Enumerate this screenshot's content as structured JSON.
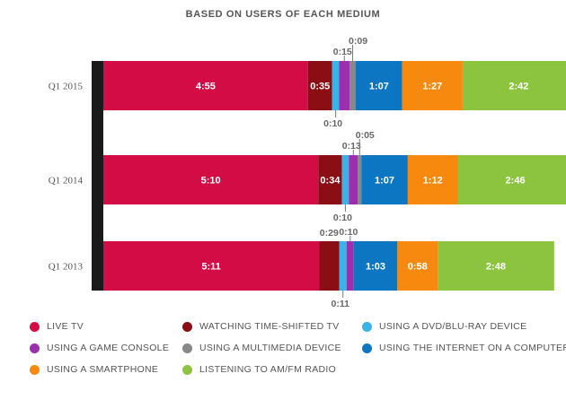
{
  "chart_data": {
    "type": "bar",
    "orientation": "horizontal",
    "stacked": true,
    "title": "BASED ON USERS OF EACH MEDIUM",
    "categories": [
      "Q1 2015",
      "Q1 2014",
      "Q1 2013"
    ],
    "series": [
      {
        "name": "LIVE TV",
        "color": "#d40c45",
        "values": [
          295,
          310,
          311
        ],
        "labels": [
          "4:55",
          "5:10",
          "5:11"
        ]
      },
      {
        "name": "WATCHING TIME-SHIFTED TV",
        "color": "#8a0e14",
        "values": [
          35,
          34,
          29
        ],
        "labels": [
          "0:35",
          "0:34",
          "0:29"
        ]
      },
      {
        "name": "USING A DVD/BLU-RAY DEVICE",
        "color": "#3ab3e6",
        "values": [
          10,
          10,
          11
        ],
        "labels": [
          "0:10",
          "0:10",
          "0:11"
        ]
      },
      {
        "name": "USING A GAME CONSOLE",
        "color": "#9b2fae",
        "values": [
          15,
          13,
          10
        ],
        "labels": [
          "0:15",
          "0:13",
          "0:10"
        ]
      },
      {
        "name": "USING A MULTIMEDIA DEVICE",
        "color": "#888888",
        "values": [
          9,
          5,
          0
        ],
        "labels": [
          "0:09",
          "0:05",
          ""
        ]
      },
      {
        "name": "USING THE INTERNET ON A COMPUTER",
        "color": "#0d76c2",
        "values": [
          67,
          67,
          63
        ],
        "labels": [
          "1:07",
          "1:07",
          "1:03"
        ]
      },
      {
        "name": "USING A SMARTPHONE",
        "color": "#f7890e",
        "values": [
          87,
          72,
          58
        ],
        "labels": [
          "1:27",
          "1:12",
          "0:58"
        ]
      },
      {
        "name": "LISTENING TO AM/FM RADIO",
        "color": "#8cc43f",
        "values": [
          162,
          166,
          168
        ],
        "labels": [
          "2:42",
          "2:46",
          "2:48"
        ]
      }
    ]
  },
  "legend": {
    "items": [
      {
        "label": "LIVE TV",
        "color": "#d40c45"
      },
      {
        "label": "WATCHING TIME-SHIFTED TV",
        "color": "#8a0e14"
      },
      {
        "label": "USING A DVD/BLU-RAY DEVICE",
        "color": "#3ab3e6"
      },
      {
        "label": "USING A GAME CONSOLE",
        "color": "#9b2fae"
      },
      {
        "label": "USING A MULTIMEDIA DEVICE",
        "color": "#888888"
      },
      {
        "label": "USING THE INTERNET ON A COMPUTER",
        "color": "#0d76c2"
      },
      {
        "label": "USING A SMARTPHONE",
        "color": "#f7890e"
      },
      {
        "label": "LISTENING TO AM/FM RADIO",
        "color": "#8cc43f"
      }
    ]
  }
}
